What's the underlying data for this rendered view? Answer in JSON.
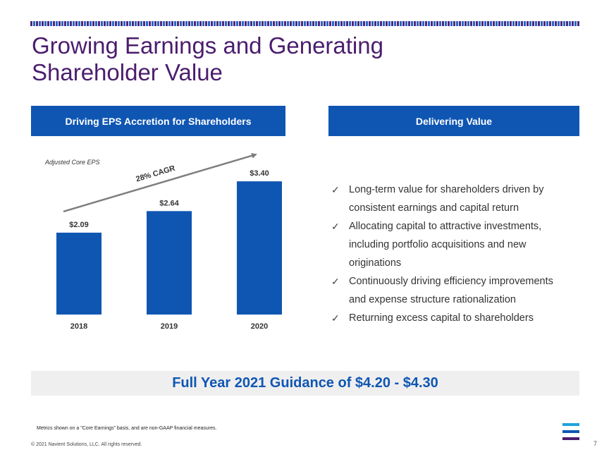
{
  "slide": {
    "title_line1": "Growing Earnings and Generating",
    "title_line2": "Shareholder Value",
    "page_number": "7"
  },
  "left_panel": {
    "header": "Driving EPS Accretion for Shareholders"
  },
  "right_panel": {
    "header": "Delivering Value",
    "bullets": [
      {
        "line1": "Long-term value for shareholders driven by",
        "line2": "consistent earnings and capital return"
      },
      {
        "line1": "Allocating capital to attractive investments,",
        "line2": "including portfolio acquisitions and new",
        "line3": "originations"
      },
      {
        "line1": "Continuously driving efficiency improvements",
        "line2": "and expense structure rationalization"
      },
      {
        "line1": "Returning excess capital to shareholders"
      }
    ]
  },
  "guidance": {
    "text": "Full Year 2021 Guidance of $4.20 - $4.30"
  },
  "footer": {
    "footnote": "Metrics shown on a \"Core Earnings\" basis, and are non-GAAP financial measures.",
    "copyright": "© 2021 Navient Solutions, LLC. All rights reserved."
  },
  "colors": {
    "brand_purple": "#4b1d6e",
    "brand_blue": "#0f56b3",
    "logo_cyan": "#1fa3dc",
    "logo_blue": "#0f56b3",
    "logo_purple": "#4b1d6e"
  },
  "chart_data": {
    "type": "bar",
    "title": "Adjusted Core EPS",
    "categories": [
      "2018",
      "2019",
      "2020"
    ],
    "values": [
      2.09,
      2.64,
      3.4
    ],
    "value_labels": [
      "$2.09",
      "$2.64",
      "$3.40"
    ],
    "annotation": "28% CAGR",
    "ylim": [
      0,
      3.6
    ],
    "bar_color": "#0f56b3",
    "arrow_color": "#7f7f7f",
    "grid": false
  }
}
